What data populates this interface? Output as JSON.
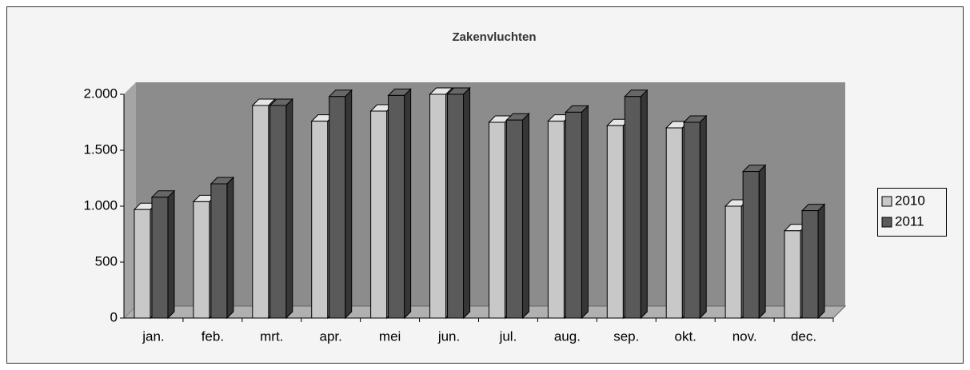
{
  "chart_data": {
    "type": "bar3d",
    "title": "Zakenvluchten",
    "categories": [
      "jan.",
      "feb.",
      "mrt.",
      "apr.",
      "mei",
      "jun.",
      "jul.",
      "aug.",
      "sep.",
      "okt.",
      "nov.",
      "dec."
    ],
    "series": [
      {
        "name": "2010",
        "color": "#c8c8c8",
        "values": [
          970,
          1040,
          1900,
          1760,
          1850,
          2000,
          1750,
          1760,
          1720,
          1700,
          1000,
          780
        ]
      },
      {
        "name": "2011",
        "color": "#5a5a5a",
        "values": [
          1080,
          1200,
          1900,
          1980,
          1990,
          2000,
          1770,
          1840,
          1980,
          1750,
          1310,
          960
        ]
      }
    ],
    "ylim": [
      0,
      2000
    ],
    "yticks": [
      0,
      500,
      {
        "value": 1000,
        "label": "1.000"
      },
      {
        "value": 1500,
        "label": "1.500"
      },
      {
        "value": 2000,
        "label": "2.000"
      }
    ],
    "grid": false,
    "legend": "right"
  }
}
